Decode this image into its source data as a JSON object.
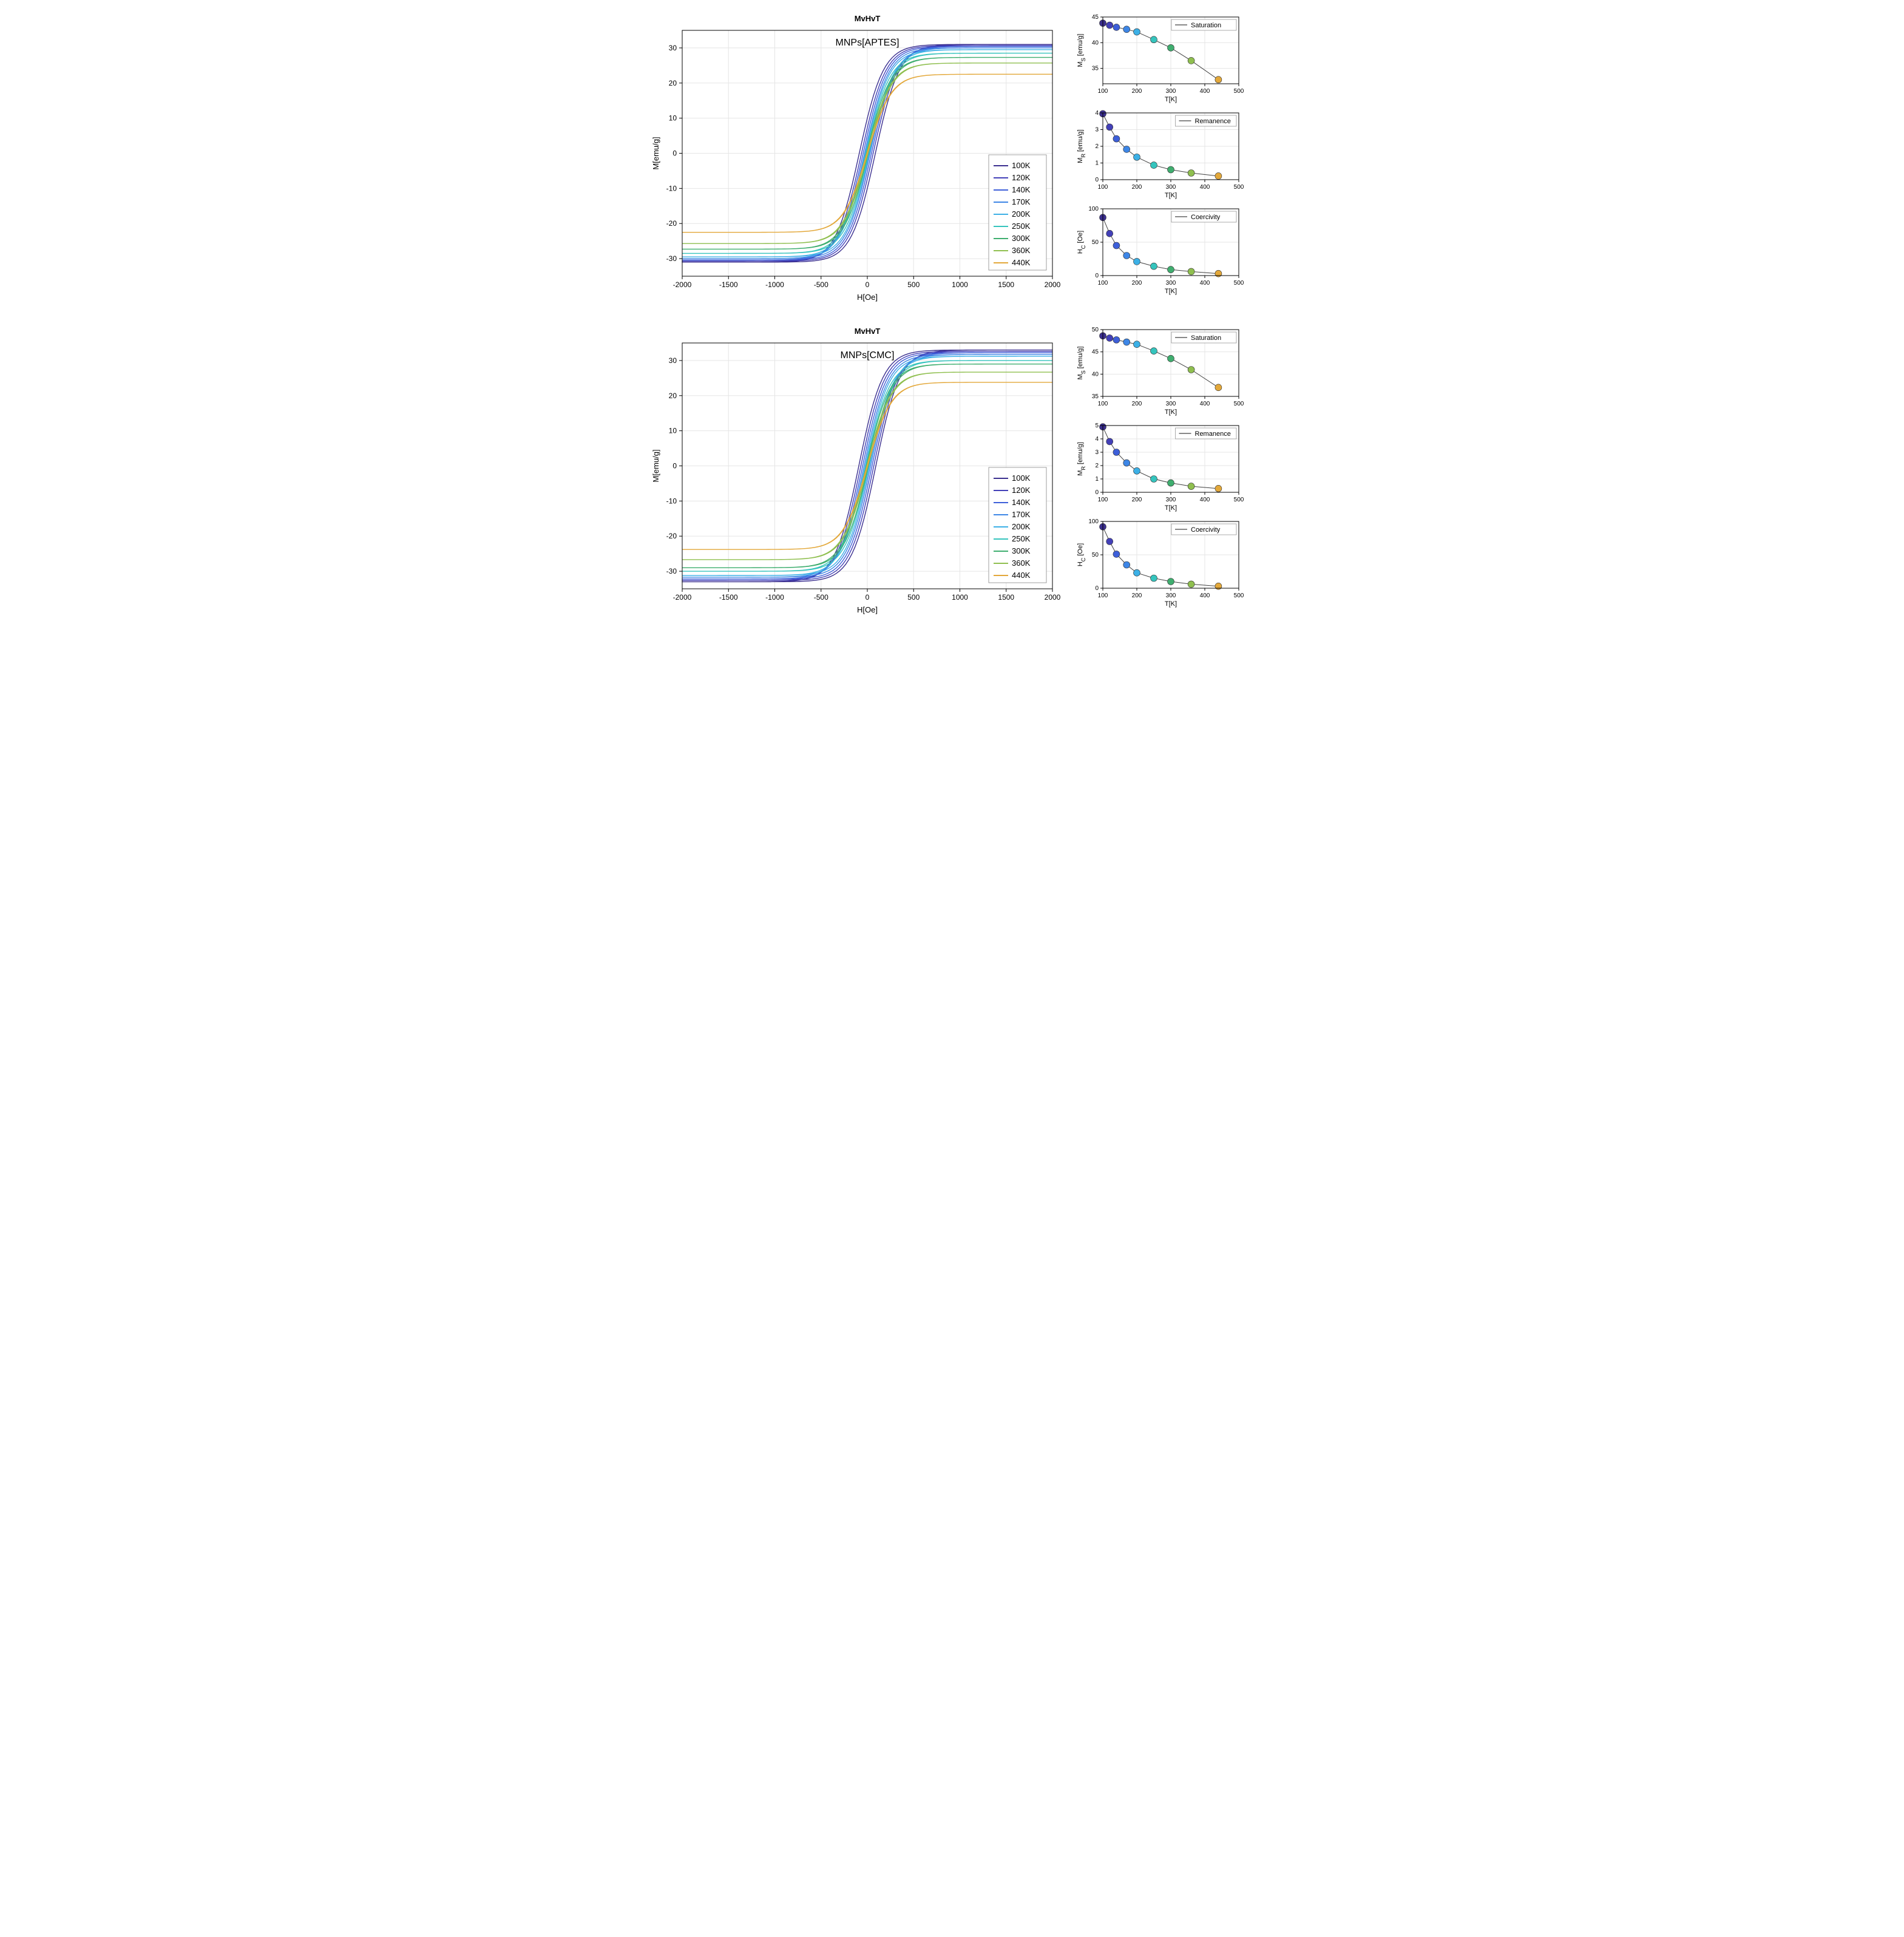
{
  "colors": {
    "background": "#ffffff",
    "axis": "#000000",
    "grid": "#e5e5e5",
    "box": "#000000",
    "text": "#000000",
    "line_small": "#404040"
  },
  "temperature_series": [
    {
      "label": "100K",
      "T": 100,
      "color": "#3b2f8f"
    },
    {
      "label": "120K",
      "T": 120,
      "color": "#4340b8"
    },
    {
      "label": "140K",
      "T": 140,
      "color": "#3d5fd9"
    },
    {
      "label": "170K",
      "T": 170,
      "color": "#3d86e6"
    },
    {
      "label": "200K",
      "T": 200,
      "color": "#3cb0e6"
    },
    {
      "label": "250K",
      "T": 250,
      "color": "#35c4bd"
    },
    {
      "label": "300K",
      "T": 300,
      "color": "#3fae6f"
    },
    {
      "label": "360K",
      "T": 360,
      "color": "#8fbf4f"
    },
    {
      "label": "440K",
      "T": 440,
      "color": "#e3a83a"
    }
  ],
  "aptes": {
    "main": {
      "title": "MvHvT",
      "subtitle": "MNPs[APTES]",
      "xlabel": "H[Oe]",
      "ylabel": "M[emu/g]",
      "xlim": [
        -2000,
        2000
      ],
      "ylim": [
        -35,
        35
      ],
      "xticks": [
        -2000,
        -1500,
        -1000,
        -500,
        0,
        500,
        1000,
        1500,
        2000
      ],
      "yticks": [
        -30,
        -20,
        -10,
        0,
        10,
        20,
        30
      ],
      "Ms": [
        31.0,
        30.7,
        30.4,
        30.0,
        29.5,
        28.5,
        27.3,
        25.7,
        22.5
      ],
      "Hc": [
        87,
        63,
        45,
        30,
        21,
        14,
        9,
        6,
        3
      ]
    },
    "saturation": {
      "legend": "Saturation",
      "xlabel": "T[K]",
      "ylabel": "M_S [emu/g]",
      "xlim": [
        100,
        500
      ],
      "ylim": [
        32,
        45
      ],
      "xticks": [
        100,
        200,
        300,
        400,
        500
      ],
      "yticks": [
        35,
        40,
        45
      ],
      "y": [
        43.8,
        43.4,
        43.0,
        42.6,
        42.1,
        40.6,
        39.0,
        36.5,
        32.8
      ]
    },
    "remanence": {
      "legend": "Remanence",
      "xlabel": "T[K]",
      "ylabel": "M_R [emu/g]",
      "xlim": [
        100,
        500
      ],
      "ylim": [
        0,
        4
      ],
      "xticks": [
        100,
        200,
        300,
        400,
        500
      ],
      "yticks": [
        0,
        1,
        2,
        3,
        4
      ],
      "y": [
        3.95,
        3.15,
        2.45,
        1.82,
        1.35,
        0.87,
        0.6,
        0.4,
        0.22
      ]
    },
    "coercivity": {
      "legend": "Coercivity",
      "xlabel": "T[K]",
      "ylabel": "H_C [Oe]",
      "xlim": [
        100,
        500
      ],
      "ylim": [
        0,
        100
      ],
      "xticks": [
        100,
        200,
        300,
        400,
        500
      ],
      "yticks": [
        0,
        50,
        100
      ],
      "y": [
        87,
        63,
        45,
        30,
        21,
        14,
        9,
        6,
        3
      ]
    }
  },
  "cmc": {
    "main": {
      "title": "MvHvT",
      "subtitle": "MNPs[CMC]",
      "xlabel": "H[Oe]",
      "ylabel": "M[emu/g]",
      "xlim": [
        -2000,
        2000
      ],
      "ylim": [
        -35,
        35
      ],
      "xticks": [
        -2000,
        -1500,
        -1000,
        -500,
        0,
        500,
        1000,
        1500,
        2000
      ],
      "yticks": [
        -30,
        -20,
        -10,
        0,
        10,
        20,
        30
      ],
      "Ms": [
        33.0,
        32.6,
        32.2,
        31.7,
        31.2,
        30.0,
        29.0,
        26.7,
        23.8
      ],
      "Hc": [
        92,
        70,
        51,
        35,
        23,
        15,
        10,
        6,
        3
      ]
    },
    "saturation": {
      "legend": "Saturation",
      "xlabel": "T[K]",
      "ylabel": "M_S [emu/g]",
      "xlim": [
        100,
        500
      ],
      "ylim": [
        35,
        50
      ],
      "xticks": [
        100,
        200,
        300,
        400,
        500
      ],
      "yticks": [
        35,
        40,
        45,
        50
      ],
      "y": [
        48.6,
        48.1,
        47.7,
        47.2,
        46.7,
        45.2,
        43.5,
        41.0,
        37.0
      ]
    },
    "remanence": {
      "legend": "Remanence",
      "xlabel": "T[K]",
      "ylabel": "M_R [emu/g]",
      "xlim": [
        100,
        500
      ],
      "ylim": [
        0,
        5
      ],
      "xticks": [
        100,
        200,
        300,
        400,
        500
      ],
      "yticks": [
        0,
        1,
        2,
        3,
        4,
        5
      ],
      "y": [
        4.9,
        3.8,
        3.0,
        2.2,
        1.6,
        1.0,
        0.7,
        0.45,
        0.28
      ]
    },
    "coercivity": {
      "legend": "Coercivity",
      "xlabel": "T[K]",
      "ylabel": "H_C [Oe]",
      "xlim": [
        100,
        500
      ],
      "ylim": [
        0,
        100
      ],
      "xticks": [
        100,
        200,
        300,
        400,
        500
      ],
      "yticks": [
        0,
        50,
        100
      ],
      "y": [
        92,
        70,
        51,
        35,
        23,
        15,
        10,
        6,
        3
      ]
    }
  },
  "style": {
    "title_fontsize": 13,
    "subtitle_fontsize": 16,
    "label_fontsize": 13,
    "tick_fontsize": 12,
    "legend_fontsize": 13,
    "small_label_fontsize": 11,
    "small_tick_fontsize": 10,
    "line_width_main": 1.4,
    "line_width_small": 1.0,
    "marker_radius": 5.5,
    "marker_stroke": "#333333"
  }
}
